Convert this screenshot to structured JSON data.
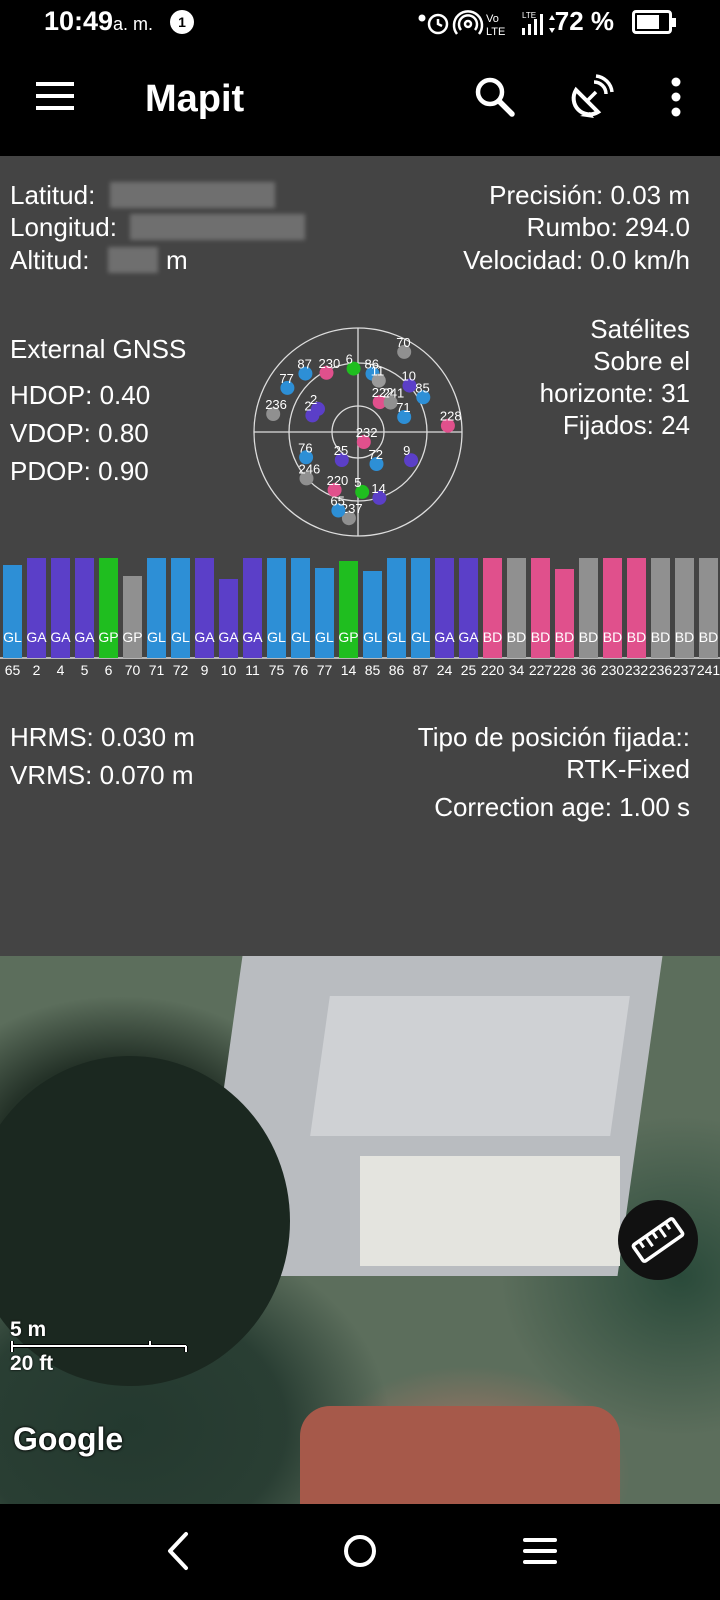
{
  "status_bar": {
    "time": "10:49",
    "ampm": "a. m.",
    "notification_count": "1",
    "volte_label": "Vo LTE",
    "battery": "72 %",
    "battery_level": 0.72
  },
  "app_bar": {
    "title": "Mapit",
    "icons": [
      "menu-icon",
      "search-icon",
      "satellite-dish-icon",
      "more-vert-icon"
    ]
  },
  "position": {
    "lat_label": "Latitud:",
    "lon_label": "Longitud:",
    "alt_label": "Altitud:",
    "alt_unit": "m",
    "precision": "Precisión: 0.03 m",
    "heading": "Rumbo: 294.0",
    "speed": "Velocidad: 0.0 km/h"
  },
  "gnss": {
    "source": "External GNSS",
    "hdop": "HDOP: 0.40",
    "vdop": "VDOP: 0.80",
    "pdop": "PDOP: 0.90",
    "sat_line1": "Satélites",
    "sat_line2": "Sobre el",
    "sat_line3": "horizonte: 31",
    "sat_fixed": "Fijados: 24"
  },
  "skyplot": {
    "satellites": [
      {
        "id": "70",
        "color": "#909090",
        "az": 30,
        "el": 10
      },
      {
        "id": "86",
        "color": "#2d8fd6",
        "az": 14,
        "el": 38
      },
      {
        "id": "6",
        "color": "#1fbe1f",
        "az": 356,
        "el": 35
      },
      {
        "id": "11",
        "color": "#9a9a9a",
        "az": 22,
        "el": 42
      },
      {
        "id": "10",
        "color": "#5b3fc8",
        "az": 48,
        "el": 30
      },
      {
        "id": "87",
        "color": "#2d8fd6",
        "az": 318,
        "el": 22
      },
      {
        "id": "230",
        "color": "#e0508c",
        "az": 332,
        "el": 32
      },
      {
        "id": "77",
        "color": "#2d8fd6",
        "az": 302,
        "el": 18
      },
      {
        "id": "222",
        "color": "#e0508c",
        "az": 36,
        "el": 58
      },
      {
        "id": "241",
        "color": "#909090",
        "az": 48,
        "el": 52
      },
      {
        "id": "85",
        "color": "#2d8fd6",
        "az": 62,
        "el": 26
      },
      {
        "id": "24",
        "color": "#5b3fc8",
        "az": 290,
        "el": 48
      },
      {
        "id": "236",
        "color": "#909090",
        "az": 282,
        "el": 15
      },
      {
        "id": "2",
        "color": "#5b3fc8",
        "az": 300,
        "el": 50
      },
      {
        "id": "71",
        "color": "#2d8fd6",
        "az": 72,
        "el": 48
      },
      {
        "id": "228",
        "color": "#e0508c",
        "az": 86,
        "el": 12
      },
      {
        "id": "232",
        "color": "#e0508c",
        "az": 150,
        "el": 80
      },
      {
        "id": "9",
        "color": "#5b3fc8",
        "az": 118,
        "el": 38
      },
      {
        "id": "76",
        "color": "#2d8fd6",
        "az": 244,
        "el": 40
      },
      {
        "id": "25",
        "color": "#5b3fc8",
        "az": 210,
        "el": 62
      },
      {
        "id": "72",
        "color": "#2d8fd6",
        "az": 150,
        "el": 58
      },
      {
        "id": "246",
        "color": "#909090",
        "az": 228,
        "el": 30
      },
      {
        "id": "220",
        "color": "#e0508c",
        "az": 202,
        "el": 36
      },
      {
        "id": "5",
        "color": "#1fbe1f",
        "az": 176,
        "el": 38
      },
      {
        "id": "14",
        "color": "#5b3fc8",
        "az": 162,
        "el": 30
      },
      {
        "id": "237",
        "color": "#909090",
        "az": 186,
        "el": 15
      },
      {
        "id": "65",
        "color": "#2d8fd6",
        "az": 194,
        "el": 20
      }
    ]
  },
  "signal_bars": [
    {
      "id": "65",
      "sys": "GL",
      "color": "#2d8fd6",
      "level": 0.93
    },
    {
      "id": "2",
      "sys": "GA",
      "color": "#5b3fc8",
      "level": 1.0
    },
    {
      "id": "4",
      "sys": "GA",
      "color": "#5b3fc8",
      "level": 1.0
    },
    {
      "id": "5",
      "sys": "GA",
      "color": "#5b3fc8",
      "level": 1.0
    },
    {
      "id": "6",
      "sys": "GP",
      "color": "#1fbe1f",
      "level": 1.0
    },
    {
      "id": "70",
      "sys": "GP",
      "color": "#909090",
      "level": 0.82
    },
    {
      "id": "71",
      "sys": "GL",
      "color": "#2d8fd6",
      "level": 1.0
    },
    {
      "id": "72",
      "sys": "GL",
      "color": "#2d8fd6",
      "level": 1.0
    },
    {
      "id": "9",
      "sys": "GA",
      "color": "#5b3fc8",
      "level": 1.0
    },
    {
      "id": "10",
      "sys": "GA",
      "color": "#5b3fc8",
      "level": 0.79
    },
    {
      "id": "11",
      "sys": "GA",
      "color": "#5b3fc8",
      "level": 1.0
    },
    {
      "id": "75",
      "sys": "GL",
      "color": "#2d8fd6",
      "level": 1.0
    },
    {
      "id": "76",
      "sys": "GL",
      "color": "#2d8fd6",
      "level": 1.0
    },
    {
      "id": "77",
      "sys": "GL",
      "color": "#2d8fd6",
      "level": 0.9
    },
    {
      "id": "14",
      "sys": "GP",
      "color": "#1fbe1f",
      "level": 0.97
    },
    {
      "id": "85",
      "sys": "GL",
      "color": "#2d8fd6",
      "level": 0.87
    },
    {
      "id": "86",
      "sys": "GL",
      "color": "#2d8fd6",
      "level": 1.0
    },
    {
      "id": "87",
      "sys": "GL",
      "color": "#2d8fd6",
      "level": 1.0
    },
    {
      "id": "24",
      "sys": "GA",
      "color": "#5b3fc8",
      "level": 1.0
    },
    {
      "id": "25",
      "sys": "GA",
      "color": "#5b3fc8",
      "level": 1.0
    },
    {
      "id": "220",
      "sys": "BD",
      "color": "#e0508c",
      "level": 1.0
    },
    {
      "id": "34",
      "sys": "BD",
      "color": "#909090",
      "level": 1.0
    },
    {
      "id": "227",
      "sys": "BD",
      "color": "#e0508c",
      "level": 1.0
    },
    {
      "id": "228",
      "sys": "BD",
      "color": "#e0508c",
      "level": 0.89
    },
    {
      "id": "36",
      "sys": "BD",
      "color": "#909090",
      "level": 1.0
    },
    {
      "id": "230",
      "sys": "BD",
      "color": "#e0508c",
      "level": 1.0
    },
    {
      "id": "232",
      "sys": "BD",
      "color": "#e0508c",
      "level": 1.0
    },
    {
      "id": "236",
      "sys": "BD",
      "color": "#909090",
      "level": 1.0
    },
    {
      "id": "237",
      "sys": "BD",
      "color": "#909090",
      "level": 1.0
    },
    {
      "id": "241",
      "sys": "BD",
      "color": "#909090",
      "level": 1.0
    }
  ],
  "accuracy": {
    "hrms": "HRMS: 0.030 m",
    "vrms": "VRMS: 0.070 m",
    "fix_label": "Tipo de posición fijada::",
    "fix_value": "RTK-Fixed",
    "correction_age": "Correction age: 1.00 s"
  },
  "map": {
    "scale_metric": "5 m",
    "scale_imperial": "20 ft",
    "attribution": "Google",
    "ruler_icon": "ruler-icon"
  },
  "nav_bar": {
    "icons": [
      "back-icon",
      "home-icon",
      "recents-icon"
    ]
  }
}
